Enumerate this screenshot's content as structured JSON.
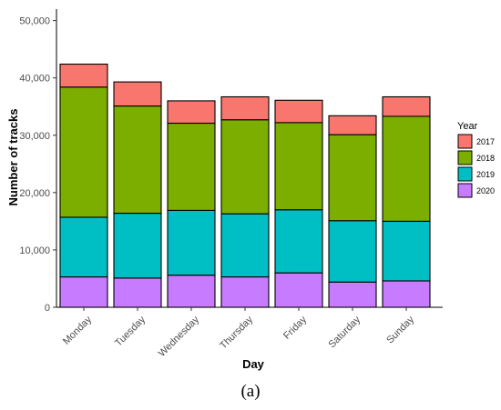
{
  "chart_data": {
    "type": "bar",
    "stacked": true,
    "categories": [
      "Monday",
      "Tuesday",
      "Wednesday",
      "Thursday",
      "Friday",
      "Saturday",
      "Sunday"
    ],
    "series": [
      {
        "name": "2020",
        "color": "#c77cff",
        "values": [
          5300,
          5100,
          5600,
          5300,
          6000,
          4400,
          4600
        ]
      },
      {
        "name": "2019",
        "color": "#00bfc4",
        "values": [
          10400,
          11300,
          11300,
          11000,
          11000,
          10700,
          10400
        ]
      },
      {
        "name": "2018",
        "color": "#7cae00",
        "values": [
          22700,
          18700,
          15200,
          16400,
          15200,
          15000,
          18300
        ]
      },
      {
        "name": "2017",
        "color": "#f8766d",
        "values": [
          4000,
          4200,
          3900,
          4000,
          3900,
          3300,
          3400
        ]
      }
    ],
    "xlabel": "Day",
    "ylabel": "Number of tracks",
    "ylim": [
      0,
      52000
    ],
    "yticks": [
      0,
      10000,
      20000,
      30000,
      40000,
      50000
    ],
    "ytick_labels": [
      "0",
      "10,000",
      "20,000",
      "30,000",
      "40,000",
      "50,000"
    ],
    "grid": false,
    "legend": {
      "title": "Year",
      "placement": "right",
      "entries": [
        "2017",
        "2018",
        "2019",
        "2020"
      ]
    }
  },
  "caption": "(a)"
}
